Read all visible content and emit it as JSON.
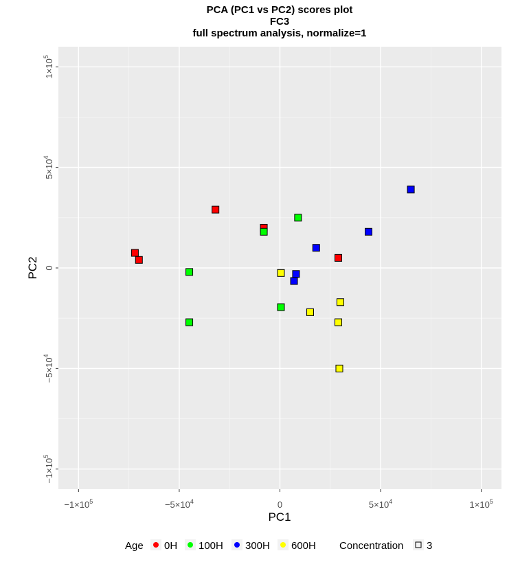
{
  "chart_data": {
    "type": "scatter",
    "title_lines": [
      "PCA (PC1 vs PC2) scores plot",
      "FC3",
      "full spectrum analysis, normalize=1"
    ],
    "xlabel": "PC1",
    "ylabel": "PC2",
    "xlim": [
      -110000,
      110000
    ],
    "ylim": [
      -110000,
      110000
    ],
    "x_ticks": [
      {
        "value": -100000,
        "label": "−1×10",
        "exp": "5"
      },
      {
        "value": -50000,
        "label": "−5×10",
        "exp": "4"
      },
      {
        "value": 0,
        "label": "0",
        "exp": ""
      },
      {
        "value": 50000,
        "label": "5×10",
        "exp": "4"
      },
      {
        "value": 100000,
        "label": "1×10",
        "exp": "5"
      }
    ],
    "y_ticks": [
      {
        "value": -100000,
        "label": "−1×10",
        "exp": "5"
      },
      {
        "value": -50000,
        "label": "−5×10",
        "exp": "4"
      },
      {
        "value": 0,
        "label": "0",
        "exp": ""
      },
      {
        "value": 50000,
        "label": "5×10",
        "exp": "4"
      },
      {
        "value": 100000,
        "label": "1×10",
        "exp": "5"
      }
    ],
    "grid": true,
    "background": "#ebebeb",
    "series": [
      {
        "name": "0H",
        "color": "#ff0000",
        "points": [
          {
            "x": -72000,
            "y": 7500
          },
          {
            "x": -70000,
            "y": 4000
          },
          {
            "x": -32000,
            "y": 29000
          },
          {
            "x": -8000,
            "y": 20000
          },
          {
            "x": 29000,
            "y": 5000
          }
        ]
      },
      {
        "name": "100H",
        "color": "#00ff00",
        "points": [
          {
            "x": -8000,
            "y": 18000
          },
          {
            "x": 9000,
            "y": 25000
          },
          {
            "x": -45000,
            "y": -2000
          },
          {
            "x": -45000,
            "y": -27000
          },
          {
            "x": 500,
            "y": -19500
          }
        ]
      },
      {
        "name": "300H",
        "color": "#0000ff",
        "points": [
          {
            "x": 65000,
            "y": 39000
          },
          {
            "x": 44000,
            "y": 18000
          },
          {
            "x": 18000,
            "y": 10000
          },
          {
            "x": 8000,
            "y": -3000
          },
          {
            "x": 7000,
            "y": -6500
          }
        ]
      },
      {
        "name": "600H",
        "color": "#ffff00",
        "points": [
          {
            "x": 500,
            "y": -2500
          },
          {
            "x": 15000,
            "y": -22000
          },
          {
            "x": 30000,
            "y": -17000
          },
          {
            "x": 29000,
            "y": -27000
          },
          {
            "x": 29500,
            "y": -50000
          }
        ]
      }
    ],
    "legend": {
      "position": "bottom",
      "age_title": "Age",
      "concentration_title": "Concentration",
      "concentration_items": [
        "3"
      ]
    }
  }
}
